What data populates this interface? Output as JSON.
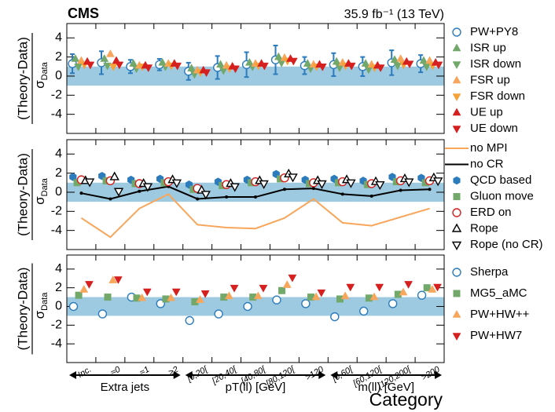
{
  "chart_data": [
    {
      "type": "scatter",
      "title": "CMS",
      "subtitle": "35.9 fb⁻¹ (13 TeV)",
      "ylabel": "(Theory-Data)",
      "ylabel_below": "σ",
      "ylabel_below_sub": "Data",
      "ylim": [
        -6,
        5.5
      ],
      "yticks": [
        -4,
        -2,
        0,
        2,
        4
      ],
      "band": [
        -1,
        1
      ],
      "band_color": "#9ecae1",
      "series": [
        {
          "name": "PW+PY8",
          "color": "#2b7bbd",
          "marker": "circle-open",
          "values": [
            1.3,
            1.4,
            1.0,
            1.2,
            0.5,
            0.9,
            1.2,
            1.7,
            1.1,
            1.2,
            1.0,
            1.4,
            1.3
          ],
          "errors": [
            1.0,
            1.2,
            0.7,
            0.6,
            0.9,
            1.2,
            1.3,
            1.5,
            0.9,
            1.2,
            1.0,
            1.3,
            0.9
          ]
        },
        {
          "name": "ISR up",
          "color": "#72a86a",
          "marker": "triangle-up",
          "values": [
            1.8,
            1.8,
            1.3,
            1.4,
            0.8,
            1.2,
            1.4,
            2.0,
            1.3,
            1.5,
            1.3,
            1.7,
            1.6
          ]
        },
        {
          "name": "ISR down",
          "color": "#72a86a",
          "marker": "triangle-down",
          "values": [
            1.0,
            1.1,
            0.8,
            1.0,
            0.2,
            0.6,
            1.0,
            1.4,
            0.8,
            0.9,
            0.7,
            1.1,
            1.0
          ]
        },
        {
          "name": "FSR up",
          "color": "#f7a65c",
          "marker": "triangle-up",
          "values": [
            1.6,
            2.3,
            1.1,
            1.3,
            0.6,
            1.1,
            1.3,
            1.9,
            1.2,
            1.4,
            1.2,
            1.8,
            1.6
          ]
        },
        {
          "name": "FSR down",
          "color": "#f5a23a",
          "marker": "triangle-down",
          "values": [
            1.2,
            1.0,
            1.0,
            1.1,
            0.4,
            0.8,
            1.1,
            1.6,
            1.0,
            1.1,
            0.9,
            1.2,
            1.1
          ]
        },
        {
          "name": "UE up",
          "color": "#d61f1f",
          "marker": "triangle-up",
          "values": [
            1.5,
            1.6,
            1.1,
            1.3,
            0.6,
            1.0,
            1.3,
            1.8,
            1.2,
            1.3,
            1.1,
            1.5,
            1.4
          ]
        },
        {
          "name": "UE down",
          "color": "#d61f1f",
          "marker": "triangle-down",
          "values": [
            1.2,
            1.2,
            0.9,
            1.1,
            0.4,
            0.8,
            1.1,
            1.6,
            1.0,
            1.1,
            0.9,
            1.3,
            1.2
          ]
        }
      ]
    },
    {
      "type": "scatter",
      "ylabel": "(Theory-Data)",
      "ylabel_below": "σ",
      "ylabel_below_sub": "Data",
      "ylim": [
        -6,
        5.5
      ],
      "yticks": [
        -4,
        -2,
        0,
        2,
        4
      ],
      "band": [
        -1,
        1
      ],
      "band_color": "#9ecae1",
      "series": [
        {
          "name": "no MPI",
          "color": "#f7a65c",
          "marker": "line",
          "values": [
            -2.7,
            -4.7,
            -1.7,
            -0.2,
            -3.4,
            -3.7,
            -3.8,
            -2.7,
            -0.7,
            -3.2,
            -3.5,
            -2.6,
            -1.7
          ]
        },
        {
          "name": "no CR",
          "color": "#000000",
          "marker": "line",
          "values": [
            -0.1,
            -0.7,
            0.1,
            0.6,
            -0.7,
            -0.5,
            -0.5,
            0.3,
            0.4,
            -0.2,
            -0.4,
            0.2,
            0.3
          ]
        },
        {
          "name": "QCD based",
          "color": "#2b7bbd",
          "marker": "hexagon",
          "values": [
            1.6,
            1.7,
            1.3,
            1.4,
            0.8,
            1.1,
            1.3,
            1.9,
            1.3,
            1.4,
            1.2,
            1.6,
            1.5
          ]
        },
        {
          "name": "Gluon move",
          "color": "#72a86a",
          "marker": "square",
          "values": [
            1.0,
            1.2,
            0.9,
            1.0,
            0.3,
            0.7,
            1.0,
            1.4,
            0.9,
            1.0,
            0.8,
            1.1,
            1.0
          ]
        },
        {
          "name": "ERD on",
          "color": "#d61f1f",
          "marker": "circle-open",
          "values": [
            1.3,
            1.2,
            0.9,
            1.1,
            0.4,
            0.8,
            1.1,
            1.5,
            1.0,
            1.1,
            0.9,
            1.2,
            1.2
          ]
        },
        {
          "name": "Rope",
          "color": "#000000",
          "marker": "triangle-up-open",
          "values": [
            1.2,
            1.6,
            0.9,
            1.3,
            0.2,
            0.9,
            1.2,
            1.9,
            1.2,
            1.3,
            1.1,
            1.4,
            1.5
          ]
        },
        {
          "name": "Rope (no CR)",
          "color": "#000000",
          "marker": "triangle-down-open",
          "values": [
            1.1,
            0.1,
            0.6,
            1.0,
            -0.2,
            0.6,
            0.9,
            1.6,
            0.9,
            1.0,
            0.8,
            1.1,
            1.2
          ]
        }
      ]
    },
    {
      "type": "scatter",
      "ylabel": "(Theory-Data)",
      "ylabel_below": "σ",
      "ylabel_below_sub": "Data",
      "xlabel": "Category",
      "categories": [
        "Inc.",
        "≈0",
        "≈1",
        "≥2",
        "[0,20[",
        "[20,40[",
        "[40,80[",
        "[80,120[",
        ">120",
        "[0,60[",
        "[60,120[",
        "[120,200[",
        ">200"
      ],
      "groups": [
        "Extra jets",
        "pT(ll) [GeV]",
        "m(ll) [GeV]"
      ],
      "ylim": [
        -6,
        5.5
      ],
      "yticks": [
        -4,
        -2,
        0,
        2,
        4
      ],
      "band": [
        -1,
        1
      ],
      "band_color": "#9ecae1",
      "series": [
        {
          "name": "Sherpa",
          "color": "#2b7bbd",
          "marker": "circle-open",
          "values": [
            0.0,
            -0.8,
            1.0,
            0.3,
            -1.5,
            -0.8,
            0.0,
            0.7,
            0.3,
            -1.1,
            -0.5,
            0.3,
            1.2
          ]
        },
        {
          "name": "MG5_aMC",
          "color": "#72a86a",
          "marker": "square",
          "values": [
            1.2,
            1.0,
            0.9,
            0.8,
            0.5,
            1.0,
            1.0,
            1.7,
            1.0,
            0.8,
            0.9,
            1.3,
            2.0
          ]
        },
        {
          "name": "PW+HW++",
          "color": "#f7a65c",
          "marker": "triangle-up",
          "values": [
            1.8,
            2.8,
            0.9,
            0.9,
            0.7,
            1.1,
            1.1,
            2.3,
            1.0,
            1.1,
            1.0,
            1.5,
            1.8
          ]
        },
        {
          "name": "PW+HW7",
          "color": "#d61f1f",
          "marker": "triangle-down",
          "values": [
            2.4,
            2.9,
            1.6,
            1.6,
            1.4,
            2.0,
            2.0,
            3.1,
            1.5,
            2.1,
            2.1,
            2.4,
            2.1
          ]
        }
      ]
    }
  ]
}
